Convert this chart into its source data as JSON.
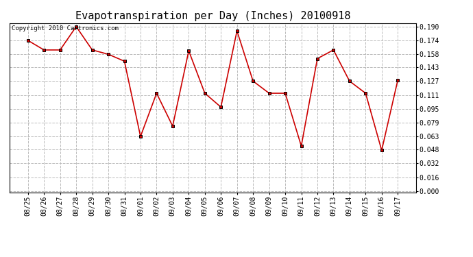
{
  "title": "Evapotranspiration per Day (Inches) 20100918",
  "copyright": "Copyright 2010 Cartronics.com",
  "dates": [
    "08/25",
    "08/26",
    "08/27",
    "08/28",
    "08/29",
    "08/30",
    "08/31",
    "09/01",
    "09/02",
    "09/03",
    "09/04",
    "09/05",
    "09/06",
    "09/07",
    "09/08",
    "09/09",
    "09/10",
    "09/11",
    "09/12",
    "09/13",
    "09/14",
    "09/15",
    "09/16",
    "09/17"
  ],
  "values": [
    0.174,
    0.163,
    0.163,
    0.19,
    0.163,
    0.158,
    0.15,
    0.063,
    0.113,
    0.075,
    0.162,
    0.113,
    0.097,
    0.185,
    0.127,
    0.113,
    0.113,
    0.052,
    0.153,
    0.163,
    0.127,
    0.113,
    0.047,
    0.128
  ],
  "line_color": "#cc0000",
  "marker": "s",
  "marker_size": 3,
  "bg_color": "#ffffff",
  "grid_color": "#bbbbbb",
  "ylim_min": -0.002,
  "ylim_max": 0.194,
  "yticks": [
    0.0,
    0.016,
    0.032,
    0.048,
    0.063,
    0.079,
    0.095,
    0.111,
    0.127,
    0.143,
    0.158,
    0.174,
    0.19
  ],
  "title_fontsize": 11,
  "tick_fontsize": 7,
  "copyright_fontsize": 6.5,
  "fig_width": 6.9,
  "fig_height": 3.75,
  "dpi": 100
}
